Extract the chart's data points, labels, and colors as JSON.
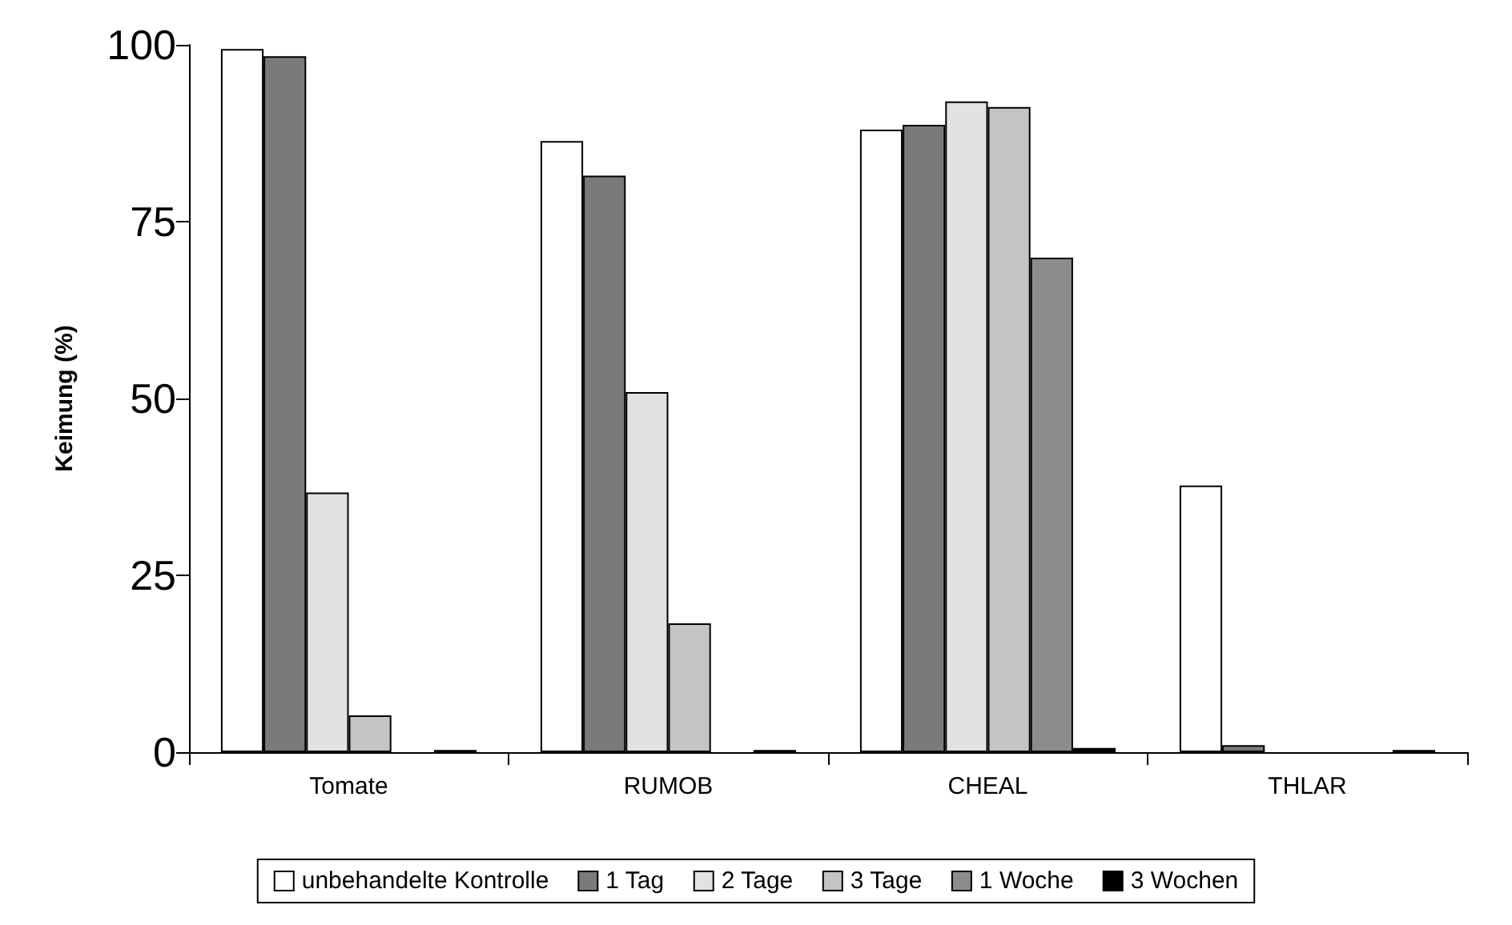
{
  "chart_data": {
    "type": "bar",
    "ylabel": "Keimung (%)",
    "categories": [
      "Tomate",
      "RUMOB",
      "CHEAL",
      "THLAR"
    ],
    "series": [
      {
        "name": "unbehandelte Kontrolle",
        "color": "#ffffff",
        "values": [
          99.4,
          86.4,
          88,
          37.7
        ]
      },
      {
        "name": "1 Tag",
        "color": "#7a7a7a",
        "values": [
          98.4,
          81.5,
          88.7,
          1
        ]
      },
      {
        "name": "2 Tage",
        "color": "#e2e2e2",
        "values": [
          36.7,
          50.9,
          92,
          null
        ]
      },
      {
        "name": "3 Tage",
        "color": "#c4c4c4",
        "values": [
          5.2,
          18.2,
          91.2,
          null
        ]
      },
      {
        "name": "1 Woche",
        "color": "#8c8c8c",
        "values": [
          null,
          null,
          69.9,
          null
        ]
      },
      {
        "name": "3 Wochen",
        "color": "#000000",
        "values": [
          0.3,
          0.3,
          0.6,
          0.3
        ]
      }
    ],
    "ylim": [
      0,
      100
    ],
    "yticks": [
      0,
      25,
      50,
      75,
      100
    ],
    "grid": false,
    "legend": "bottom"
  }
}
